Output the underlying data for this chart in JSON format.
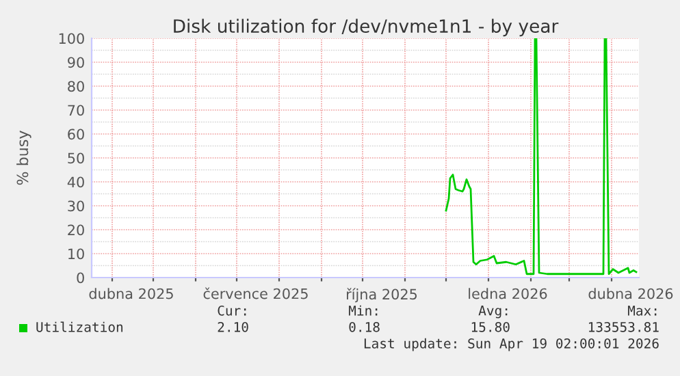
{
  "chart_data": {
    "type": "line",
    "title": "Disk utilization for /dev/nvme1n1 - by year",
    "ylabel": "% busy",
    "x": [
      "2025-12-01",
      "2025-12-03",
      "2025-12-04",
      "2025-12-06",
      "2025-12-08",
      "2025-12-10",
      "2025-12-13",
      "2025-12-14",
      "2025-12-16",
      "2025-12-18",
      "2025-12-19",
      "2025-12-21",
      "2025-12-23",
      "2025-12-26",
      "2025-12-31",
      "2026-01-05",
      "2026-01-07",
      "2026-01-14",
      "2026-01-21",
      "2026-01-27",
      "2026-01-29",
      "2026-02-03",
      "2026-02-04",
      "2026-02-05",
      "2026-02-07",
      "2026-02-13",
      "2026-03-02",
      "2026-03-19",
      "2026-03-26",
      "2026-03-27",
      "2026-03-28",
      "2026-03-30",
      "2026-04-02",
      "2026-04-06",
      "2026-04-13",
      "2026-04-14",
      "2026-04-17",
      "2026-04-19"
    ],
    "series": [
      {
        "name": "Utilization",
        "color": "#00cc00",
        "values": [
          28,
          33,
          41.5,
          43,
          37,
          36.5,
          36,
          37,
          41,
          38,
          37,
          6.5,
          5.5,
          7,
          7.5,
          9,
          6,
          6.5,
          5.5,
          7,
          1.5,
          1.5,
          100,
          100,
          2,
          1.5,
          1.5,
          1.5,
          1.5,
          100,
          100,
          1.5,
          3.5,
          2,
          4,
          2,
          3,
          2.3
        ]
      }
    ],
    "xlim": [
      "2025-03-17",
      "2026-04-21"
    ],
    "xticks": [
      {
        "value": "2025-04-01",
        "label": null
      },
      {
        "value": "2025-04-15",
        "label": "dubna 2025"
      },
      {
        "value": "2025-05-01",
        "label": null
      },
      {
        "value": "2025-06-01",
        "label": null
      },
      {
        "value": "2025-07-01",
        "label": null
      },
      {
        "value": "2025-07-15",
        "label": "července 2025"
      },
      {
        "value": "2025-08-01",
        "label": null
      },
      {
        "value": "2025-09-01",
        "label": null
      },
      {
        "value": "2025-10-01",
        "label": null
      },
      {
        "value": "2025-10-15",
        "label": "října 2025"
      },
      {
        "value": "2025-11-01",
        "label": null
      },
      {
        "value": "2025-12-01",
        "label": null
      },
      {
        "value": "2026-01-01",
        "label": null
      },
      {
        "value": "2026-01-15",
        "label": "ledna 2026"
      },
      {
        "value": "2026-02-01",
        "label": null
      },
      {
        "value": "2026-03-01",
        "label": null
      },
      {
        "value": "2026-04-01",
        "label": null
      },
      {
        "value": "2026-04-15",
        "label": "dubna 2026"
      }
    ],
    "ylim": [
      0,
      100
    ],
    "yticks": [
      0,
      10,
      20,
      30,
      40,
      50,
      60,
      70,
      80,
      90,
      100
    ],
    "grid": true,
    "legend": "bottom",
    "annotations": [
      "Cur:",
      "Min:",
      "Avg:",
      "Max:",
      "2.10",
      "0.18",
      "15.80",
      "133553.81",
      "Last update: Sun Apr 19 02:00:01 2026"
    ]
  }
}
